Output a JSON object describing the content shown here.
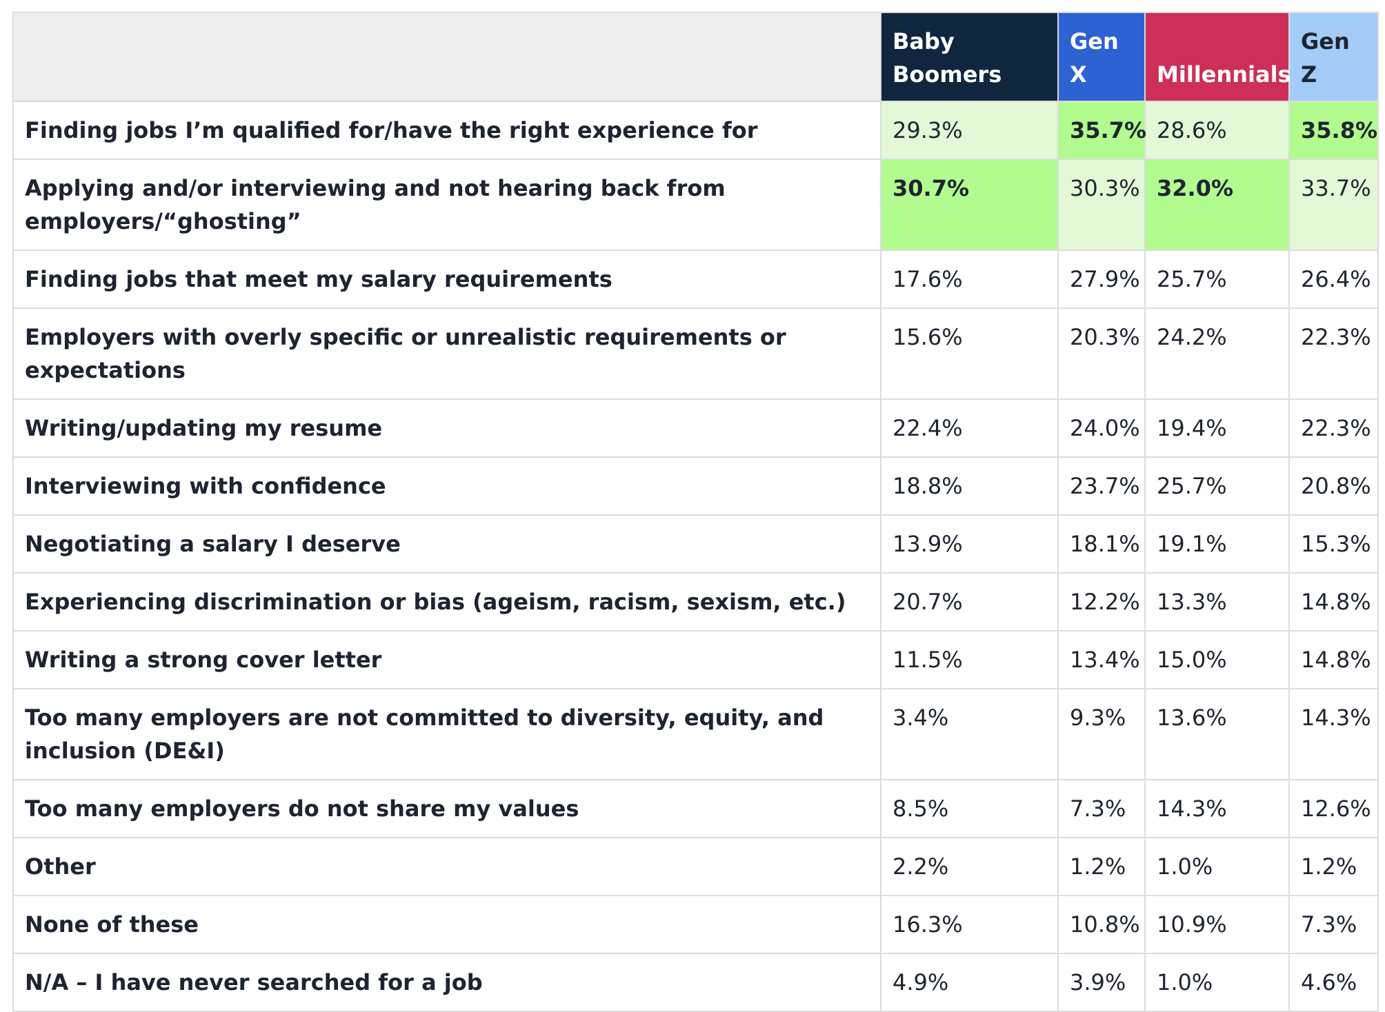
{
  "headers": {
    "corner": "",
    "generations": [
      {
        "label_line1": "Baby",
        "label_line2": "Boomers",
        "color": "#0f263e"
      },
      {
        "label_line1": "",
        "label_line2": "Gen X",
        "color": "#2c62d1"
      },
      {
        "label_line1": "",
        "label_line2": "Millennials",
        "color": "#cd2f58"
      },
      {
        "label_line1": "",
        "label_line2": "Gen Z",
        "color": "#a3cdf8"
      }
    ]
  },
  "highlight_colors": {
    "strong": "#b2fb8e",
    "light": "#e3f8d6"
  },
  "rows": [
    {
      "label": "Finding jobs I’m qualified for/have the right experience for",
      "values": [
        "29.3%",
        "35.7%",
        "28.6%",
        "35.8%"
      ],
      "highlight": [
        "light",
        "strong",
        "light",
        "strong"
      ]
    },
    {
      "label": "Applying and/or interviewing and not hearing back from employers/“ghosting”",
      "values": [
        "30.7%",
        "30.3%",
        "32.0%",
        "33.7%"
      ],
      "highlight": [
        "strong",
        "light",
        "strong",
        "light"
      ]
    },
    {
      "label": "Finding jobs that meet my salary requirements",
      "values": [
        "17.6%",
        "27.9%",
        "25.7%",
        "26.4%"
      ],
      "highlight": [
        "",
        "",
        "",
        ""
      ]
    },
    {
      "label": "Employers with overly specific or unrealistic requirements or expectations",
      "values": [
        "15.6%",
        "20.3%",
        "24.2%",
        "22.3%"
      ],
      "highlight": [
        "",
        "",
        "",
        ""
      ]
    },
    {
      "label": "Writing/updating my resume",
      "values": [
        "22.4%",
        "24.0%",
        "19.4%",
        "22.3%"
      ],
      "highlight": [
        "",
        "",
        "",
        ""
      ]
    },
    {
      "label": "Interviewing with confidence",
      "values": [
        "18.8%",
        "23.7%",
        "25.7%",
        "20.8%"
      ],
      "highlight": [
        "",
        "",
        "",
        ""
      ]
    },
    {
      "label": "Negotiating a salary I deserve",
      "values": [
        "13.9%",
        "18.1%",
        "19.1%",
        "15.3%"
      ],
      "highlight": [
        "",
        "",
        "",
        ""
      ]
    },
    {
      "label": "Experiencing discrimination or bias (ageism, racism, sexism, etc.)",
      "values": [
        "20.7%",
        "12.2%",
        "13.3%",
        "14.8%"
      ],
      "highlight": [
        "",
        "",
        "",
        ""
      ]
    },
    {
      "label": "Writing a strong cover letter",
      "values": [
        "11.5%",
        "13.4%",
        "15.0%",
        "14.8%"
      ],
      "highlight": [
        "",
        "",
        "",
        ""
      ]
    },
    {
      "label": "Too many employers are not committed to diversity, equity, and inclusion (DE&I)",
      "values": [
        "3.4%",
        "9.3%",
        "13.6%",
        "14.3%"
      ],
      "highlight": [
        "",
        "",
        "",
        ""
      ]
    },
    {
      "label": "Too many employers do not share my values",
      "values": [
        "8.5%",
        "7.3%",
        "14.3%",
        "12.6%"
      ],
      "highlight": [
        "",
        "",
        "",
        ""
      ]
    },
    {
      "label": "Other",
      "values": [
        "2.2%",
        "1.2%",
        "1.0%",
        "1.2%"
      ],
      "highlight": [
        "",
        "",
        "",
        ""
      ]
    },
    {
      "label": "None of these",
      "values": [
        "16.3%",
        "10.8%",
        "10.9%",
        "7.3%"
      ],
      "highlight": [
        "",
        "",
        "",
        ""
      ]
    },
    {
      "label": "N/A – I have never searched for a job",
      "values": [
        "4.9%",
        "3.9%",
        "1.0%",
        "4.6%"
      ],
      "highlight": [
        "",
        "",
        "",
        ""
      ]
    }
  ]
}
